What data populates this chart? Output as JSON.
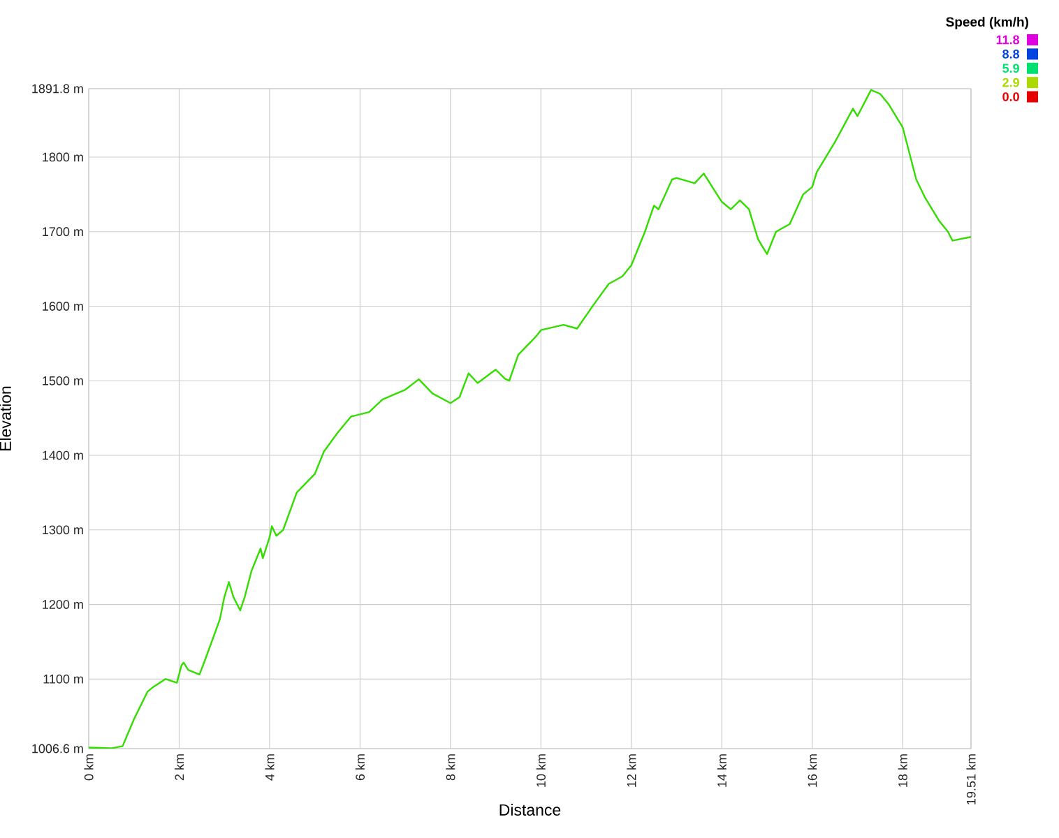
{
  "chart_data": {
    "type": "line",
    "xlabel": "Distance",
    "ylabel": "Elevation",
    "clabel": "Speed (km/h)",
    "cticks": [
      11.8,
      8.8,
      5.9,
      2.9,
      {
        "value": 0,
        "label": "0.0"
      }
    ],
    "xlim": [
      0,
      19.51
    ],
    "ylim": [
      1006.6,
      1891.8
    ],
    "xticks": [
      {
        "value": 0,
        "label": "0 km"
      },
      {
        "value": 2,
        "label": "2 km"
      },
      {
        "value": 4,
        "label": "4 km"
      },
      {
        "value": 6,
        "label": "6 km"
      },
      {
        "value": 8,
        "label": "8 km"
      },
      {
        "value": 10,
        "label": "10 km"
      },
      {
        "value": 12,
        "label": "12 km"
      },
      {
        "value": 14,
        "label": "14 km"
      },
      {
        "value": 16,
        "label": "16 km"
      },
      {
        "value": 18,
        "label": "18 km"
      },
      {
        "value": 19.51,
        "label": "19.51 km"
      }
    ],
    "yticks": [
      {
        "value": 1006.6,
        "label": "1006.6 m"
      },
      {
        "value": 1100,
        "label": "1100 m"
      },
      {
        "value": 1200,
        "label": "1200 m"
      },
      {
        "value": 1300,
        "label": "1300 m"
      },
      {
        "value": 1400,
        "label": "1400 m"
      },
      {
        "value": 1500,
        "label": "1500 m"
      },
      {
        "value": 1600,
        "label": "1600 m"
      },
      {
        "value": 1700,
        "label": "1700 m"
      },
      {
        "value": 1800,
        "label": "1800 m"
      },
      {
        "value": 1891.8,
        "label": "1891.8 m"
      }
    ],
    "grid": true,
    "marker": "none",
    "line_style": "solid",
    "x": [
      0,
      0.5,
      0.75,
      1.0,
      1.3,
      1.4,
      1.7,
      1.95,
      2.05,
      2.1,
      2.2,
      2.45,
      2.6,
      2.9,
      3.0,
      3.1,
      3.2,
      3.35,
      3.45,
      3.6,
      3.8,
      3.85,
      4.0,
      4.05,
      4.15,
      4.3,
      4.6,
      5.0,
      5.2,
      5.5,
      5.8,
      6.2,
      6.5,
      7.0,
      7.3,
      7.6,
      8.0,
      8.2,
      8.4,
      8.6,
      9.0,
      9.2,
      9.3,
      9.5,
      9.9,
      10.0,
      10.5,
      10.8,
      11.2,
      11.5,
      11.8,
      12.0,
      12.3,
      12.5,
      12.6,
      12.9,
      13.0,
      13.4,
      13.6,
      14.0,
      14.2,
      14.4,
      14.6,
      14.8,
      15.0,
      15.2,
      15.5,
      15.8,
      16.0,
      16.1,
      16.5,
      16.9,
      17.0,
      17.3,
      17.5,
      17.7,
      18.0,
      18.3,
      18.5,
      18.8,
      19.0,
      19.1,
      19.51
    ],
    "series": [
      {
        "color": "#33dd00",
        "values": [
          1008,
          1007,
          1010,
          1046,
          1083,
          1088,
          1100,
          1095,
          1118,
          1122,
          1112,
          1106,
          1130,
          1180,
          1210,
          1230,
          1210,
          1192,
          1210,
          1245,
          1275,
          1262,
          1290,
          1305,
          1292,
          1300,
          1350,
          1375,
          1405,
          1430,
          1452,
          1458,
          1475,
          1488,
          1502,
          1483,
          1470,
          1478,
          1510,
          1497,
          1515,
          1503,
          1500,
          1535,
          1560,
          1568,
          1575,
          1570,
          1605,
          1630,
          1640,
          1655,
          1700,
          1735,
          1730,
          1770,
          1772,
          1765,
          1778,
          1740,
          1730,
          1742,
          1730,
          1690,
          1670,
          1700,
          1710,
          1750,
          1760,
          1780,
          1820,
          1865,
          1855,
          1890,
          1885,
          1870,
          1840,
          1770,
          1745,
          1715,
          1700,
          1688,
          1693
        ]
      }
    ]
  }
}
